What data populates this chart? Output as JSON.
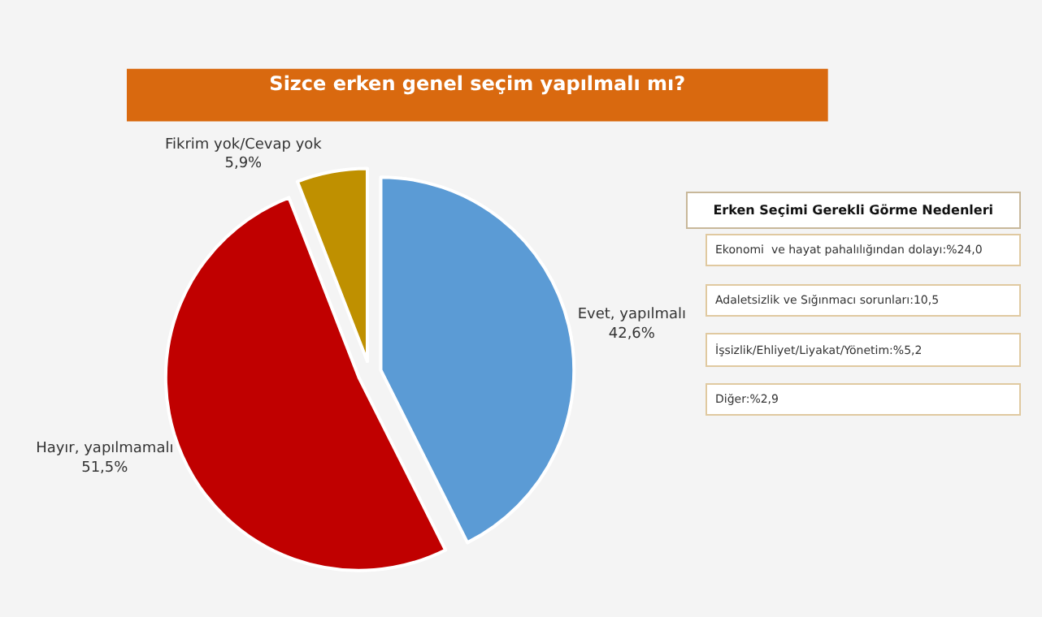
{
  "chart_data": {
    "type": "pie",
    "title": "Sizce erken genel seçim yapılmalı mı?",
    "categories": [
      "Evet, yapılmalı",
      "Hayır, yapılmamalı",
      "Fikrim yok/Cevap yok"
    ],
    "values": [
      42.6,
      51.5,
      5.9
    ],
    "value_labels": [
      "42,6%",
      "51,5%",
      "5,9%"
    ],
    "colors": [
      "#5b9bd5",
      "#c00000",
      "#bf9000"
    ],
    "legend": false,
    "annotations": [
      "Erken Seçimi Gerekli Görme Nedenleri",
      "Ekonomi  ve hayat pahalılığından dolayı:%24,0",
      "Adaletsizlik ve Sığınmacı sorunları:10,5",
      "İşsizlik/Ehliyet/Liyakat/Yönetim:%5,2",
      "Diğer:%2,9"
    ]
  }
}
